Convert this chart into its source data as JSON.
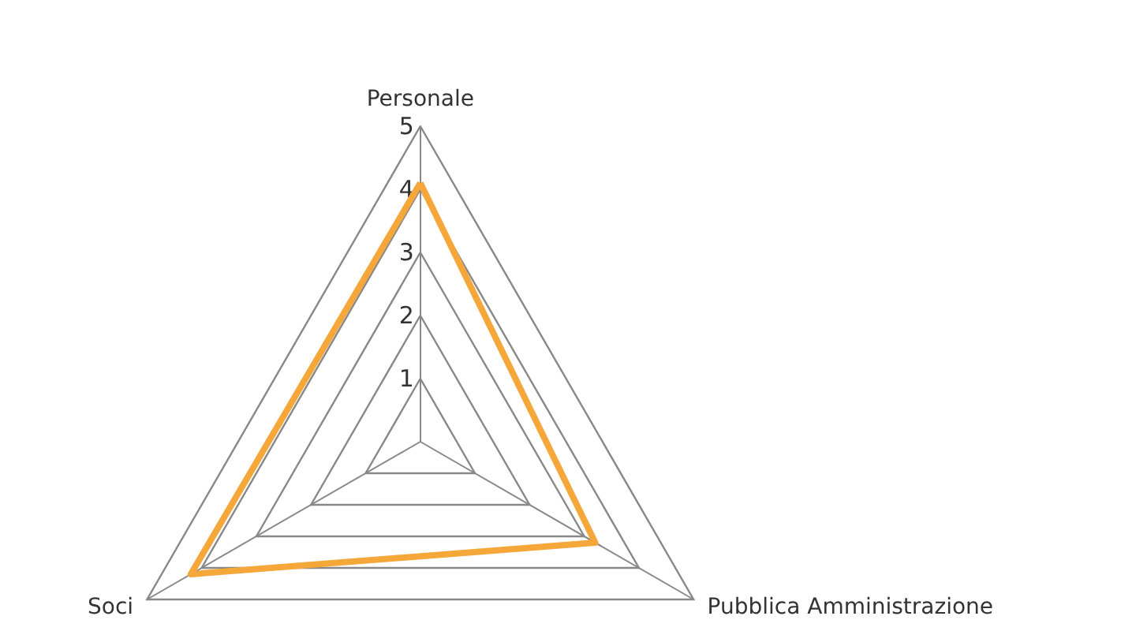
{
  "chart_data": {
    "type": "radar",
    "categories": [
      "Personale",
      "Pubblica Amministrazione",
      "Soci"
    ],
    "series": [
      {
        "color": "#f5a73a",
        "values": [
          4.1,
          3.2,
          4.2
        ]
      }
    ],
    "ylim": [
      0,
      5
    ],
    "yticks": [
      1,
      2,
      3,
      4,
      5
    ],
    "marker": "none"
  }
}
